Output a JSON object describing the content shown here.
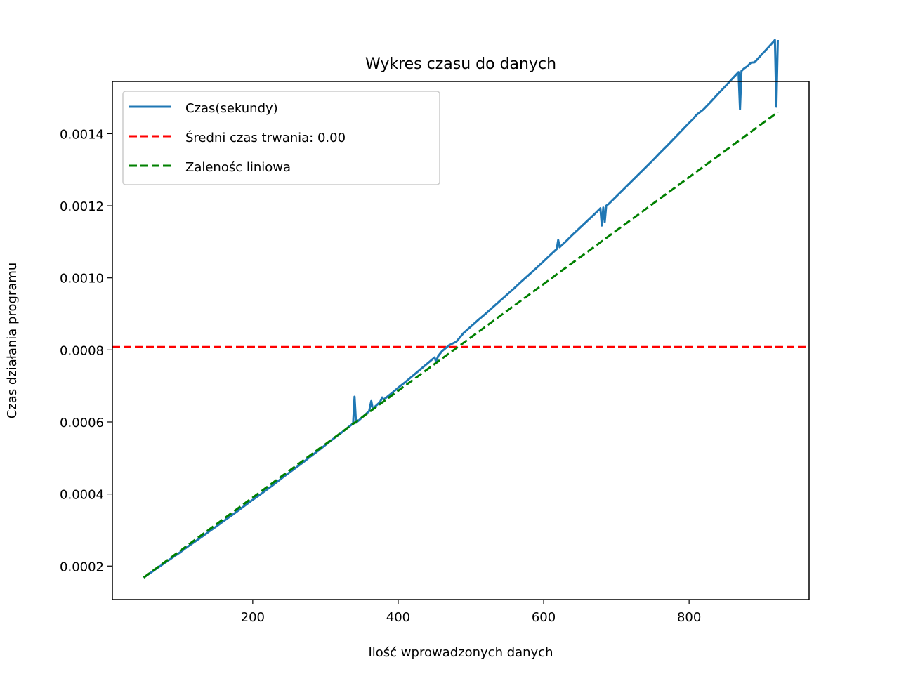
{
  "chart_data": {
    "type": "line",
    "title": "Wykres czasu do danych",
    "xlabel": "Ilość wprowadzonych danych",
    "ylabel": "Czas działania programu",
    "xlim": [
      7,
      965
    ],
    "ylim": [
      0.000107,
      0.001545
    ],
    "xticks": [
      200,
      400,
      600,
      800
    ],
    "xtick_labels": [
      "200",
      "400",
      "600",
      "800"
    ],
    "yticks": [
      0.0002,
      0.0004,
      0.0006,
      0.0008,
      0.001,
      0.0012,
      0.0014
    ],
    "ytick_labels": [
      "0.0002",
      "0.0004",
      "0.0006",
      "0.0008",
      "0.0010",
      "0.0012",
      "0.0014"
    ],
    "grid": false,
    "legend_position": "upper-left",
    "series": [
      {
        "name": "Czas(sekundy)",
        "color": "#1f77b4",
        "style": "solid",
        "x": [
          50,
          60,
          70,
          80,
          90,
          100,
          110,
          120,
          130,
          140,
          150,
          160,
          170,
          180,
          190,
          200,
          210,
          220,
          230,
          240,
          250,
          260,
          270,
          280,
          290,
          300,
          310,
          320,
          330,
          335,
          338,
          340,
          342,
          345,
          350,
          355,
          360,
          363,
          365,
          370,
          375,
          378,
          380,
          390,
          400,
          410,
          420,
          430,
          440,
          450,
          452,
          455,
          460,
          470,
          480,
          490,
          500,
          510,
          520,
          530,
          540,
          550,
          560,
          570,
          580,
          590,
          600,
          610,
          618,
          620,
          622,
          630,
          640,
          650,
          660,
          670,
          678,
          680,
          682,
          684,
          686,
          690,
          700,
          710,
          720,
          730,
          740,
          750,
          760,
          770,
          780,
          790,
          800,
          805,
          810,
          820,
          830,
          840,
          850,
          860,
          868,
          870,
          872,
          875,
          880,
          885,
          890,
          900,
          910,
          918,
          920,
          922
        ],
        "y": [
          0.000168,
          0.000182,
          0.000196,
          0.00021,
          0.000224,
          0.000238,
          0.000253,
          0.000267,
          0.000281,
          0.000296,
          0.00031,
          0.000325,
          0.000339,
          0.000354,
          0.000369,
          0.000384,
          0.000398,
          0.000413,
          0.000428,
          0.000444,
          0.000459,
          0.000474,
          0.000489,
          0.000505,
          0.00052,
          0.000536,
          0.000552,
          0.000567,
          0.000583,
          0.000591,
          0.000596,
          0.00067,
          0.000598,
          0.000603,
          0.000612,
          0.000621,
          0.00063,
          0.000658,
          0.000637,
          0.000646,
          0.000655,
          0.000668,
          0.000662,
          0.000678,
          0.000695,
          0.000711,
          0.000728,
          0.000745,
          0.000762,
          0.000779,
          0.000768,
          0.000783,
          0.000796,
          0.000813,
          0.000823,
          0.000847,
          0.000865,
          0.000883,
          0.0009,
          0.000918,
          0.000936,
          0.000954,
          0.000972,
          0.000991,
          0.001009,
          0.001027,
          0.001046,
          0.001065,
          0.00108,
          0.001105,
          0.001085,
          0.0011,
          0.00112,
          0.001139,
          0.001158,
          0.001177,
          0.001193,
          0.001145,
          0.001195,
          0.001155,
          0.0012,
          0.001206,
          0.001226,
          0.001246,
          0.001266,
          0.001286,
          0.001306,
          0.001326,
          0.001347,
          0.001367,
          0.001388,
          0.001409,
          0.00143,
          0.00144,
          0.001452,
          0.001468,
          0.001489,
          0.001511,
          0.001532,
          0.001554,
          0.001571,
          0.001468,
          0.001574,
          0.00158,
          0.001587,
          0.001597,
          0.001598,
          0.00162,
          0.001642,
          0.00166,
          0.001475,
          0.00166
        ]
      },
      {
        "name": "Średni czas trwania: 0.00",
        "color": "#ff0000",
        "style": "dashed",
        "y_value": 0.000808
      },
      {
        "name": "Zalenośc liniowa",
        "color": "#008000",
        "style": "dashed",
        "x": [
          50,
          922
        ],
        "y": [
          0.000168,
          0.00146
        ]
      }
    ]
  }
}
